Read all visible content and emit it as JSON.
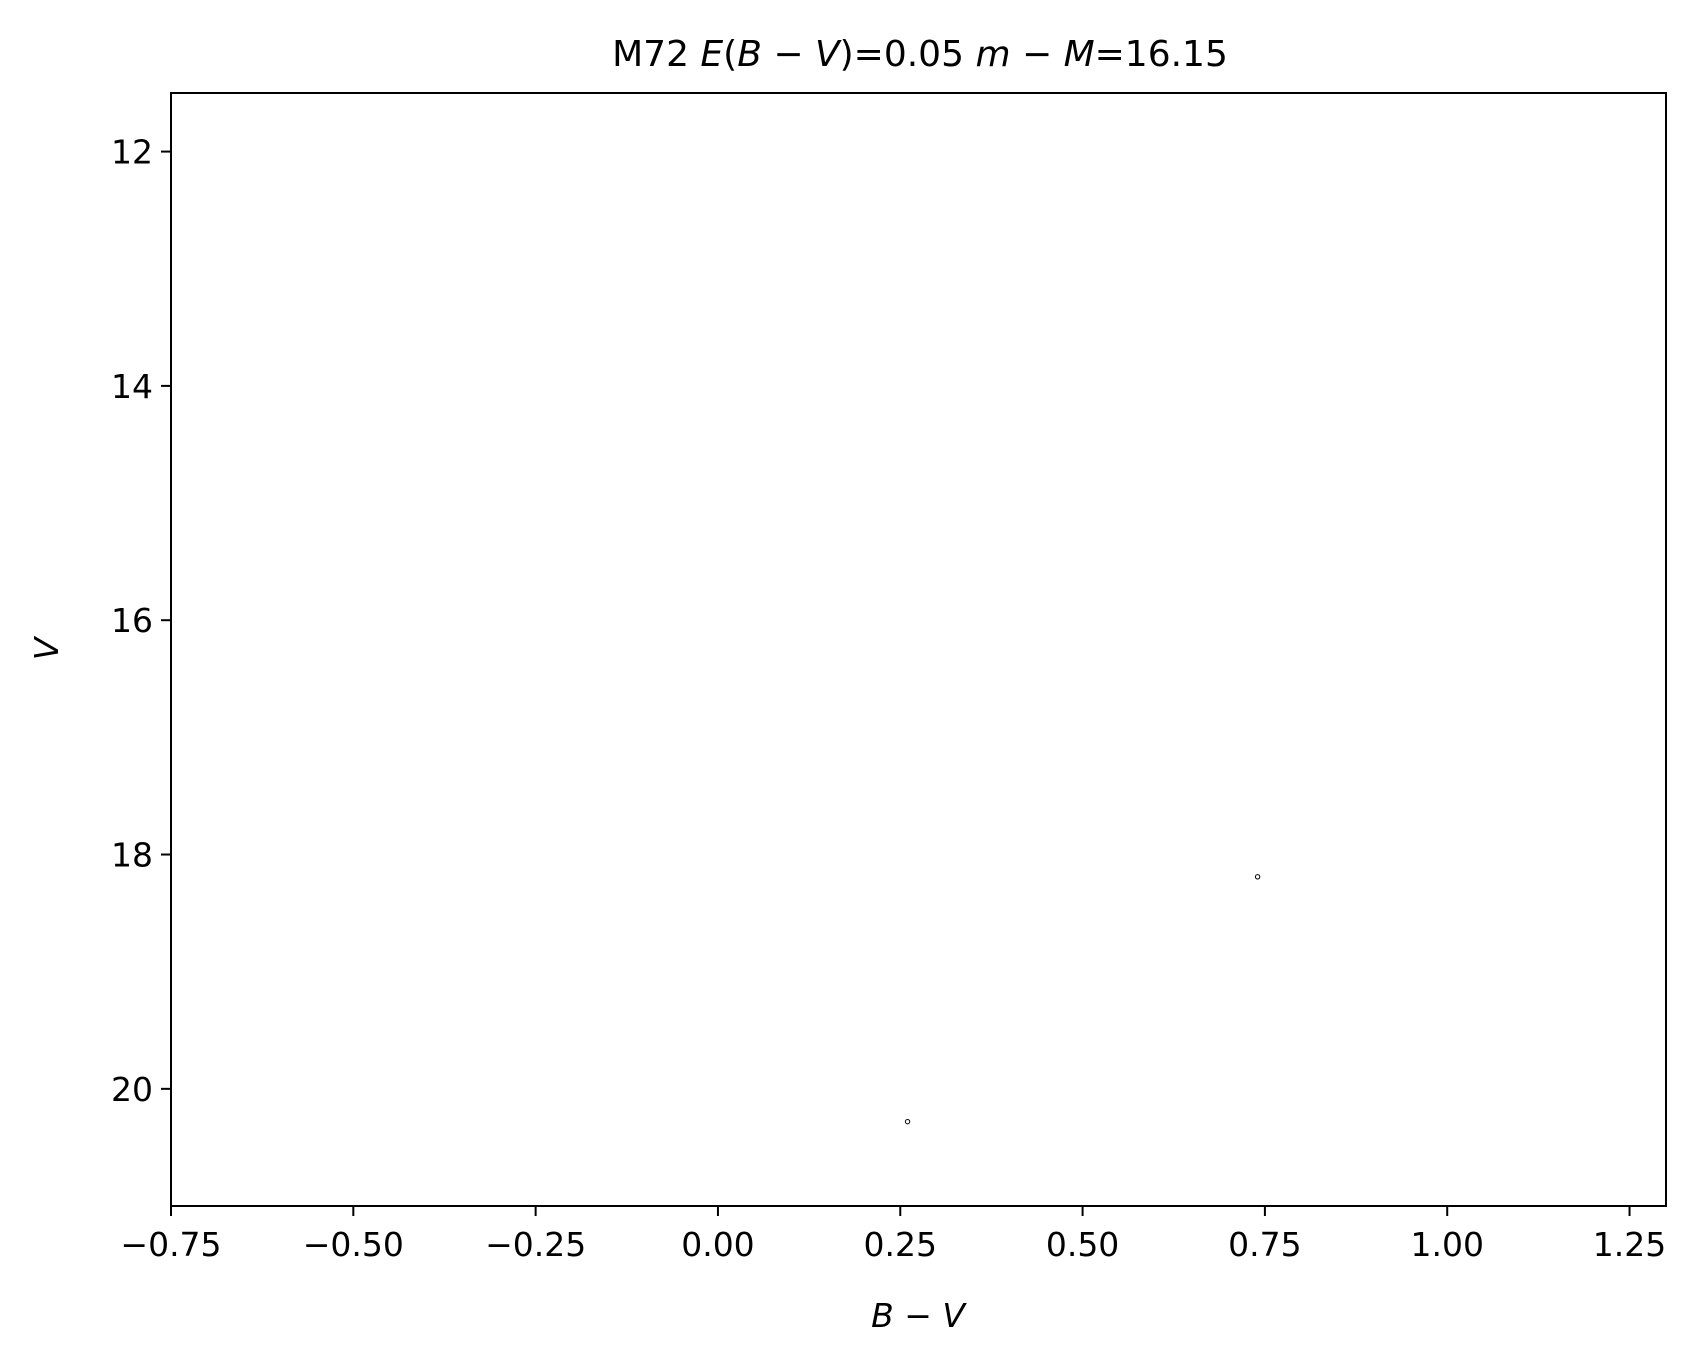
{
  "chart_data": {
    "type": "scatter",
    "title_parts": [
      {
        "text": "M72 ",
        "italic": false
      },
      {
        "text": "E",
        "italic": true
      },
      {
        "text": "(",
        "italic": false
      },
      {
        "text": "B",
        "italic": true
      },
      {
        "text": " − ",
        "italic": false
      },
      {
        "text": "V",
        "italic": true
      },
      {
        "text": ")=0.05 ",
        "italic": false
      },
      {
        "text": "m",
        "italic": true
      },
      {
        "text": " − ",
        "italic": false
      },
      {
        "text": "M",
        "italic": true
      },
      {
        "text": "=16.15",
        "italic": false
      }
    ],
    "xlabel": "B − V",
    "ylabel": "V",
    "xlim": [
      -0.75,
      1.3
    ],
    "ylim": [
      21.0,
      11.5
    ],
    "y_inverted": true,
    "xticks": [
      -0.75,
      -0.5,
      -0.25,
      0.0,
      0.25,
      0.5,
      0.75,
      1.0,
      1.25
    ],
    "xtick_labels": [
      "−0.75",
      "−0.50",
      "−0.25",
      "0.00",
      "0.25",
      "0.50",
      "0.75",
      "1.00",
      "1.25"
    ],
    "yticks": [
      12,
      14,
      16,
      18,
      20
    ],
    "ytick_labels": [
      "12",
      "14",
      "16",
      "18",
      "20"
    ],
    "grid": false,
    "points": [
      {
        "x": 0.74,
        "y": 18.19
      },
      {
        "x": 0.26,
        "y": 20.28
      }
    ],
    "marker_color": "#000000"
  }
}
